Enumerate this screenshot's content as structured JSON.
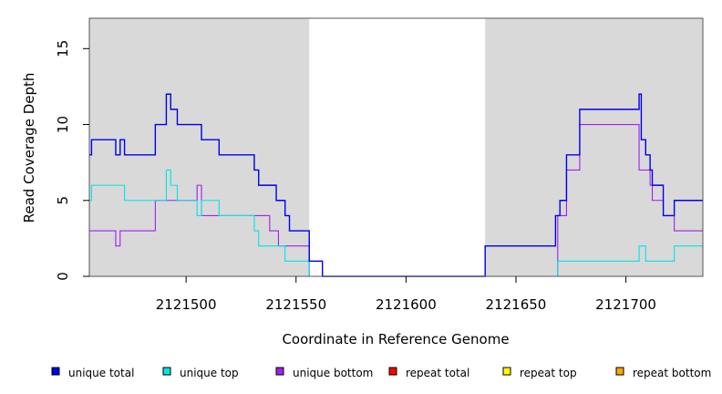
{
  "chart_data": {
    "type": "line",
    "title": "",
    "xlabel": "Coordinate in Reference Genome",
    "ylabel": "Read Coverage Depth",
    "xlim": [
      2121456,
      2121735
    ],
    "ylim": [
      0,
      17
    ],
    "x_ticks": [
      2121500,
      2121550,
      2121600,
      2121650,
      2121700
    ],
    "x_tick_labels": [
      "2121500",
      "2121550",
      "2121600",
      "2121650",
      "2121700"
    ],
    "y_ticks": [
      0,
      5,
      10,
      15
    ],
    "y_tick_labels": [
      "0",
      "5",
      "10",
      "15"
    ],
    "shaded_regions": [
      [
        2121456,
        2121556
      ],
      [
        2121636,
        2121735
      ]
    ],
    "legend_position": "bottom",
    "series": [
      {
        "name": "unique total",
        "color": "#0000ee",
        "points": [
          [
            2121456,
            8
          ],
          [
            2121457,
            9
          ],
          [
            2121468,
            8
          ],
          [
            2121470,
            9
          ],
          [
            2121472,
            8
          ],
          [
            2121486,
            10
          ],
          [
            2121491,
            12
          ],
          [
            2121493,
            11
          ],
          [
            2121496,
            10
          ],
          [
            2121507,
            9
          ],
          [
            2121515,
            8
          ],
          [
            2121531,
            7
          ],
          [
            2121533,
            6
          ],
          [
            2121541,
            5
          ],
          [
            2121545,
            4
          ],
          [
            2121547,
            3
          ],
          [
            2121556,
            1
          ],
          [
            2121562,
            0
          ],
          [
            2121636,
            2
          ],
          [
            2121668,
            4
          ],
          [
            2121670,
            5
          ],
          [
            2121673,
            8
          ],
          [
            2121679,
            11
          ],
          [
            2121706,
            12
          ],
          [
            2121707,
            9
          ],
          [
            2121709,
            8
          ],
          [
            2121711,
            7
          ],
          [
            2121712,
            6
          ],
          [
            2121717,
            4
          ],
          [
            2121722,
            5
          ],
          [
            2121735,
            5
          ]
        ]
      },
      {
        "name": "unique top",
        "color": "#00e5e5",
        "points": [
          [
            2121456,
            5
          ],
          [
            2121457,
            6
          ],
          [
            2121472,
            5
          ],
          [
            2121491,
            7
          ],
          [
            2121493,
            6
          ],
          [
            2121496,
            5
          ],
          [
            2121505,
            4
          ],
          [
            2121507,
            5
          ],
          [
            2121515,
            4
          ],
          [
            2121531,
            3
          ],
          [
            2121533,
            2
          ],
          [
            2121545,
            1
          ],
          [
            2121556,
            0
          ],
          [
            2121669,
            1
          ],
          [
            2121706,
            2
          ],
          [
            2121709,
            1
          ],
          [
            2121722,
            2
          ],
          [
            2121735,
            2
          ]
        ]
      },
      {
        "name": "unique bottom",
        "color": "#a020f0",
        "points": [
          [
            2121456,
            3
          ],
          [
            2121468,
            2
          ],
          [
            2121470,
            3
          ],
          [
            2121486,
            5
          ],
          [
            2121505,
            6
          ],
          [
            2121507,
            4
          ],
          [
            2121538,
            3
          ],
          [
            2121542,
            2
          ],
          [
            2121556,
            0
          ],
          [
            2121668,
            0
          ],
          [
            2121669,
            4
          ],
          [
            2121673,
            7
          ],
          [
            2121679,
            10
          ],
          [
            2121706,
            7
          ],
          [
            2121711,
            6
          ],
          [
            2121712,
            5
          ],
          [
            2121717,
            4
          ],
          [
            2121722,
            3
          ],
          [
            2121735,
            3
          ]
        ]
      },
      {
        "name": "repeat total",
        "color": "#ff0000",
        "points": [
          [
            2121456,
            0
          ],
          [
            2121735,
            0
          ]
        ]
      },
      {
        "name": "repeat top",
        "color": "#ffff00",
        "points": [
          [
            2121456,
            0
          ],
          [
            2121735,
            0
          ]
        ]
      },
      {
        "name": "repeat bottom",
        "color": "#ffa500",
        "points": [
          [
            2121456,
            0
          ],
          [
            2121735,
            0
          ]
        ]
      }
    ]
  }
}
